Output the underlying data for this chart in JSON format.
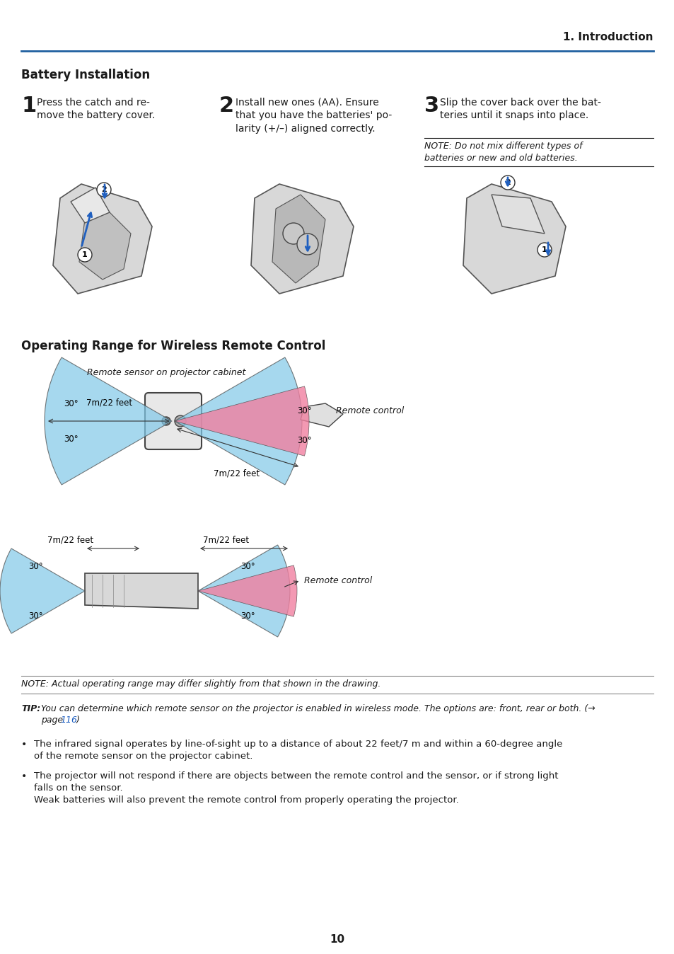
{
  "page_number": "10",
  "header_text": "1. Introduction",
  "header_line_color": "#2060a0",
  "section1_title": "Battery Installation",
  "step1_large": "1",
  "step1_text": "Press the catch and re-\nmove the battery cover.",
  "step2_large": "2",
  "step2_text": "Install new ones (AA). Ensure\nthat you have the batteries' po-\nlarity (+/–) aligned correctly.",
  "step3_large": "3",
  "step3_text": "Slip the cover back over the bat-\nteries until it snaps into place.",
  "note3_text": "NOTE: Do not mix different types of\nbatteries or new and old batteries.",
  "section2_title": "Operating Range for Wireless Remote Control",
  "label_7m": "7m/22 feet",
  "label_30deg": "30°",
  "label_remote_sensor": "Remote sensor on projector cabinet",
  "label_remote_control": "Remote control",
  "note_italic": "NOTE: Actual operating range may differ slightly from that shown in the drawing.",
  "tip_text": "TIP: You can determine which remote sensor on the projector is enabled in wireless mode. The options are: front, rear or both. (→\npage 116)",
  "bullet1": "The infrared signal operates by line-of-sight up to a distance of about 22 feet/7 m and within a 60-degree angle\nof the remote sensor on the projector cabinet.",
  "bullet2": "The projector will not respond if there are objects between the remote control and the sensor, or if strong light\nfalls on the sensor.\nWeak batteries will also prevent the remote control from properly operating the projector.",
  "blue_color": "#2060c0",
  "cyan_fill": "#80c8e8",
  "pink_fill": "#f080a0",
  "bg_color": "#ffffff",
  "text_color": "#1a1a1a"
}
